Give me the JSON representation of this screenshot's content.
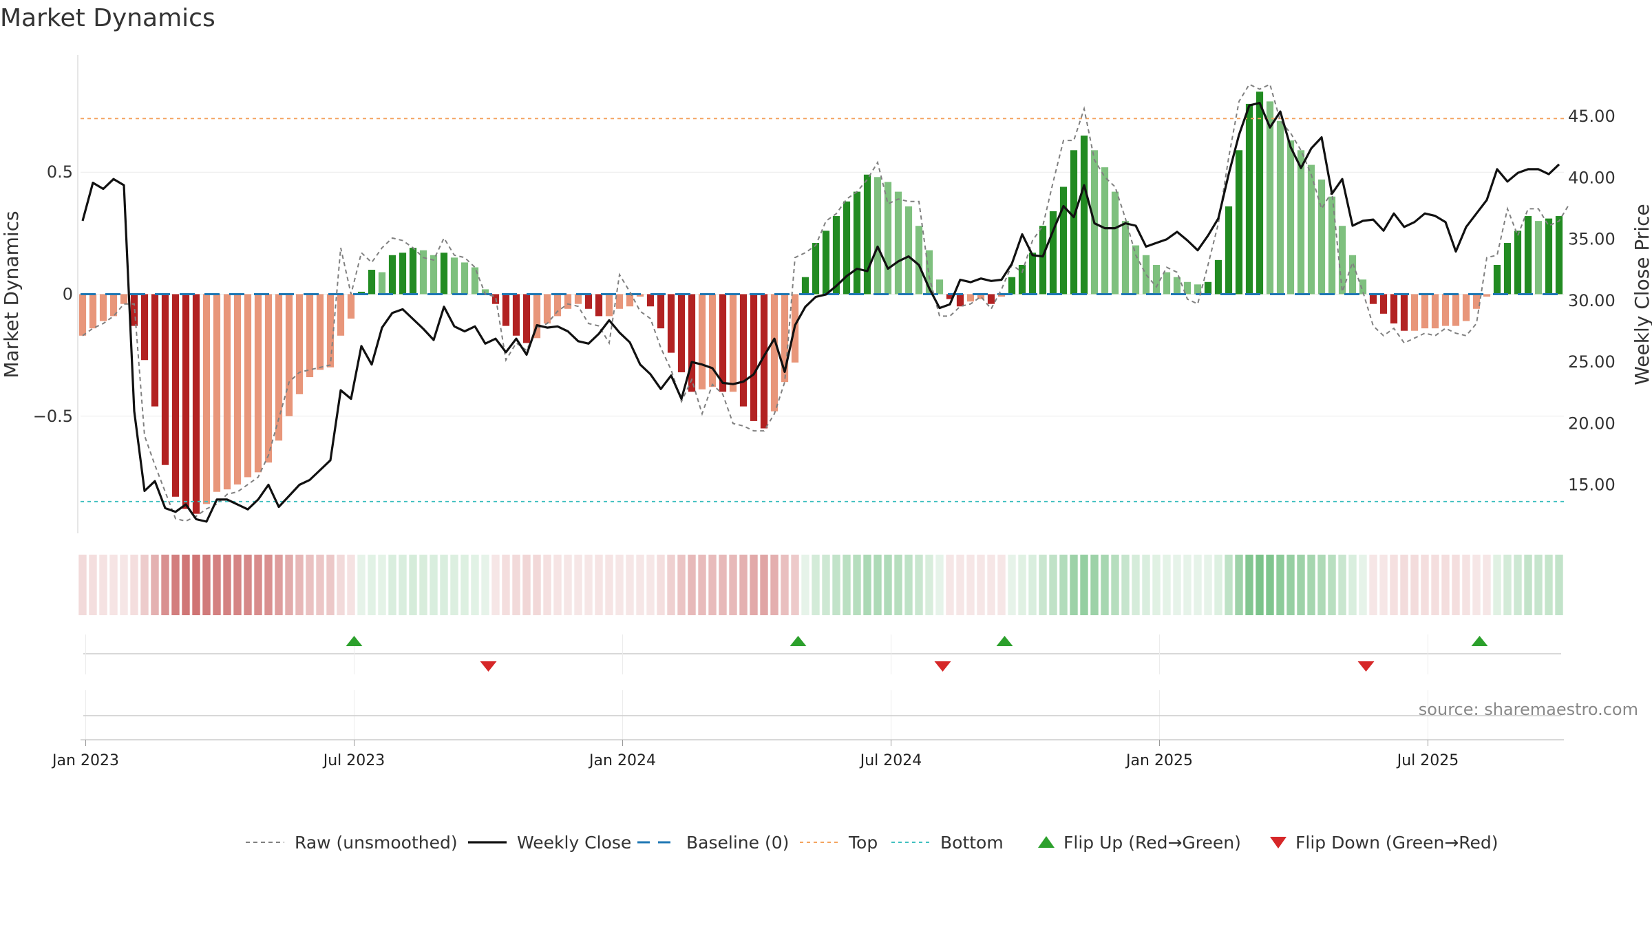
{
  "page": {
    "title": "Market Dynamics"
  },
  "chart_data": {
    "type": "bar",
    "title": "Market Dynamics",
    "ylabel_left": "Market Dynamics",
    "ylabel_right": "Weekly Close Price",
    "source": "source: sharemaestro.com",
    "ylim_left": [
      -0.98,
      0.98
    ],
    "yticks_left": [
      {
        "v": 0.5,
        "label": "0.5"
      },
      {
        "v": 0,
        "label": "0"
      },
      {
        "v": -0.5,
        "label": "−0.5"
      }
    ],
    "ylim_right": [
      11.05,
      50.0
    ],
    "yticks_right": [
      15,
      20,
      25,
      30,
      35,
      40,
      45
    ],
    "yticks_right_labels": [
      "15.00",
      "20.00",
      "25.00",
      "30.00",
      "35.00",
      "40.00",
      "45.00"
    ],
    "x_ticks": [
      {
        "week": 1,
        "label": "Jan 2023"
      },
      {
        "week": 27,
        "label": "Jul 2023"
      },
      {
        "week": 53,
        "label": "Jan 2024"
      },
      {
        "week": 79,
        "label": "Jul 2024"
      },
      {
        "week": 105,
        "label": "Jan 2025"
      },
      {
        "week": 131,
        "label": "Jul 2025"
      }
    ],
    "top_level": 0.72,
    "bottom_level": -0.85,
    "baseline": 0,
    "colors": {
      "strong_red": "#b22222",
      "light_red": "#e8967a",
      "strong_green": "#228b22",
      "light_green": "#7ec07e",
      "top_line": "#f4a460",
      "bottom_line": "#40c0c0",
      "baseline_line": "#1f77b4",
      "close_line": "#111111",
      "raw_line": "#808080",
      "flip_up": "#2ca02c",
      "flip_down": "#d62728"
    },
    "start_date": "2022-12-26",
    "week_step_days": 7,
    "bars": [
      -0.17,
      -0.14,
      -0.11,
      -0.09,
      -0.04,
      -0.13,
      -0.27,
      -0.46,
      -0.7,
      -0.83,
      -0.88,
      -0.9,
      -0.86,
      -0.81,
      -0.8,
      -0.78,
      -0.75,
      -0.73,
      -0.69,
      -0.6,
      -0.5,
      -0.41,
      -0.34,
      -0.31,
      -0.3,
      -0.17,
      -0.1,
      0.01,
      0.1,
      0.09,
      0.16,
      0.17,
      0.19,
      0.18,
      0.16,
      0.17,
      0.15,
      0.13,
      0.11,
      0.02,
      -0.04,
      -0.13,
      -0.17,
      -0.2,
      -0.18,
      -0.12,
      -0.09,
      -0.06,
      -0.04,
      -0.06,
      -0.09,
      -0.09,
      -0.06,
      -0.05,
      -0.01,
      -0.05,
      -0.14,
      -0.24,
      -0.32,
      -0.4,
      -0.39,
      -0.38,
      -0.4,
      -0.4,
      -0.46,
      -0.52,
      -0.55,
      -0.48,
      -0.36,
      -0.28,
      0.07,
      0.21,
      0.26,
      0.32,
      0.38,
      0.42,
      0.49,
      0.48,
      0.46,
      0.42,
      0.36,
      0.28,
      0.18,
      0.06,
      -0.02,
      -0.05,
      -0.03,
      -0.02,
      -0.04,
      -0.01,
      0.07,
      0.12,
      0.17,
      0.28,
      0.34,
      0.44,
      0.59,
      0.65,
      0.59,
      0.52,
      0.42,
      0.3,
      0.2,
      0.16,
      0.12,
      0.09,
      0.07,
      0.05,
      0.04,
      0.05,
      0.14,
      0.36,
      0.59,
      0.78,
      0.83,
      0.79,
      0.71,
      0.63,
      0.59,
      0.53,
      0.47,
      0.4,
      0.28,
      0.16,
      0.06,
      -0.04,
      -0.08,
      -0.12,
      -0.15,
      -0.15,
      -0.14,
      -0.14,
      -0.13,
      -0.13,
      -0.11,
      -0.06,
      -0.01,
      0.12,
      0.21,
      0.26,
      0.32,
      0.3,
      0.31,
      0.32
    ],
    "close": [
      36.5,
      39.6,
      39.1,
      39.9,
      39.4,
      21.0,
      14.5,
      15.3,
      13.1,
      12.8,
      13.4,
      12.2,
      12.0,
      13.8,
      13.8,
      13.4,
      13.0,
      13.8,
      15.0,
      13.2,
      14.1,
      15.0,
      15.4,
      16.2,
      17.0,
      22.7,
      22.0,
      26.3,
      24.8,
      27.8,
      29.0,
      29.3,
      28.5,
      27.7,
      26.8,
      29.5,
      27.9,
      27.5,
      27.9,
      26.5,
      26.9,
      25.8,
      26.9,
      25.6,
      28.0,
      27.8,
      27.9,
      27.5,
      26.7,
      26.5,
      27.3,
      28.4,
      27.4,
      26.6,
      24.8,
      24.0,
      22.8,
      23.9,
      22.0,
      25.0,
      24.8,
      24.5,
      23.3,
      23.2,
      23.4,
      24.0,
      25.5,
      26.9,
      24.2,
      28.0,
      29.5,
      30.3,
      30.5,
      31.2,
      32.0,
      32.6,
      32.4,
      34.4,
      32.6,
      33.2,
      33.6,
      32.9,
      31.0,
      29.4,
      29.7,
      31.7,
      31.5,
      31.8,
      31.6,
      31.7,
      33.0,
      35.4,
      33.7,
      33.6,
      35.7,
      37.7,
      36.8,
      39.4,
      36.3,
      35.9,
      35.9,
      36.3,
      36.1,
      34.4,
      34.7,
      35.0,
      35.6,
      34.9,
      34.1,
      35.3,
      36.7,
      40.3,
      43.5,
      45.9,
      46.1,
      44.1,
      45.4,
      42.5,
      40.8,
      42.4,
      43.3,
      38.7,
      39.9,
      36.1,
      36.5,
      36.6,
      35.7,
      37.1,
      36.0,
      36.4,
      37.1,
      36.9,
      36.4,
      34.0,
      36.0,
      37.1,
      38.2,
      40.7,
      39.7,
      40.4,
      40.7,
      40.7,
      40.3,
      41.1
    ],
    "raw": [
      -0.17,
      -0.14,
      -0.12,
      -0.09,
      -0.04,
      -0.04,
      -0.58,
      -0.7,
      -0.81,
      -0.92,
      -0.93,
      -0.91,
      -0.88,
      -0.86,
      -0.82,
      -0.81,
      -0.78,
      -0.75,
      -0.66,
      -0.51,
      -0.36,
      -0.32,
      -0.31,
      -0.3,
      -0.29,
      0.19,
      0.0,
      0.17,
      0.13,
      0.19,
      0.23,
      0.22,
      0.19,
      0.15,
      0.14,
      0.23,
      0.16,
      0.15,
      0.11,
      0.0,
      -0.01,
      -0.27,
      -0.2,
      -0.23,
      -0.14,
      -0.12,
      -0.07,
      -0.04,
      -0.05,
      -0.12,
      -0.13,
      -0.2,
      0.08,
      0.01,
      -0.07,
      -0.1,
      -0.22,
      -0.31,
      -0.44,
      -0.35,
      -0.49,
      -0.37,
      -0.41,
      -0.53,
      -0.54,
      -0.56,
      -0.56,
      -0.49,
      -0.36,
      0.15,
      0.17,
      0.2,
      0.3,
      0.33,
      0.39,
      0.42,
      0.47,
      0.54,
      0.37,
      0.39,
      0.38,
      0.38,
      0.07,
      -0.09,
      -0.09,
      -0.05,
      -0.04,
      -0.01,
      -0.06,
      0.02,
      0.12,
      0.09,
      0.22,
      0.28,
      0.46,
      0.63,
      0.63,
      0.76,
      0.55,
      0.48,
      0.44,
      0.31,
      0.16,
      0.08,
      0.03,
      0.11,
      0.09,
      -0.02,
      -0.04,
      0.12,
      0.29,
      0.56,
      0.79,
      0.86,
      0.84,
      0.86,
      0.71,
      0.66,
      0.59,
      0.49,
      0.35,
      0.42,
      0.01,
      0.13,
      0.01,
      -0.13,
      -0.17,
      -0.14,
      -0.2,
      -0.18,
      -0.16,
      -0.17,
      -0.14,
      -0.16,
      -0.17,
      -0.12,
      0.15,
      0.16,
      0.35,
      0.24,
      0.35,
      0.35,
      0.28,
      0.3,
      0.37
    ],
    "regime_strip": [
      -0.17,
      -0.14,
      -0.11,
      -0.09,
      -0.04,
      -0.13,
      -0.27,
      -0.46,
      -0.7,
      -0.83,
      -0.88,
      -0.9,
      -0.86,
      -0.81,
      -0.8,
      -0.78,
      -0.75,
      -0.73,
      -0.69,
      -0.6,
      -0.5,
      -0.41,
      -0.34,
      -0.31,
      -0.3,
      -0.17,
      -0.1,
      0.01,
      0.1,
      0.09,
      0.16,
      0.17,
      0.19,
      0.18,
      0.16,
      0.17,
      0.15,
      0.13,
      0.11,
      0.02,
      -0.04,
      -0.13,
      -0.17,
      -0.2,
      -0.18,
      -0.12,
      -0.09,
      -0.06,
      -0.04,
      -0.06,
      -0.09,
      -0.09,
      -0.06,
      -0.05,
      -0.01,
      -0.05,
      -0.14,
      -0.24,
      -0.32,
      -0.4,
      -0.39,
      -0.38,
      -0.4,
      -0.4,
      -0.46,
      -0.52,
      -0.55,
      -0.48,
      -0.36,
      -0.28,
      0.07,
      0.21,
      0.26,
      0.32,
      0.38,
      0.42,
      0.49,
      0.48,
      0.46,
      0.42,
      0.36,
      0.28,
      0.18,
      0.06,
      -0.02,
      -0.05,
      -0.03,
      -0.02,
      -0.04,
      -0.01,
      0.07,
      0.12,
      0.17,
      0.28,
      0.34,
      0.44,
      0.59,
      0.65,
      0.59,
      0.52,
      0.42,
      0.3,
      0.2,
      0.16,
      0.12,
      0.09,
      0.07,
      0.05,
      0.04,
      0.05,
      0.14,
      0.36,
      0.59,
      0.78,
      0.83,
      0.79,
      0.71,
      0.63,
      0.59,
      0.53,
      0.47,
      0.4,
      0.28,
      0.16,
      0.06,
      -0.04,
      -0.08,
      -0.12,
      -0.15,
      -0.15,
      -0.14,
      -0.14,
      -0.13,
      -0.13,
      -0.11,
      -0.06,
      -0.01,
      0.12,
      0.21,
      0.26,
      0.32,
      0.3,
      0.31,
      0.32
    ],
    "flips": [
      {
        "week": 27,
        "dir": "up"
      },
      {
        "week": 40,
        "dir": "down"
      },
      {
        "week": 70,
        "dir": "up"
      },
      {
        "week": 84,
        "dir": "down"
      },
      {
        "week": 90,
        "dir": "up"
      },
      {
        "week": 125,
        "dir": "down"
      },
      {
        "week": 136,
        "dir": "up"
      }
    ],
    "legend": [
      {
        "label": "Raw (unsmoothed)",
        "kind": "dashed",
        "color": "#808080"
      },
      {
        "label": "Weekly Close",
        "kind": "solid",
        "color": "#111111"
      },
      {
        "label": "Baseline (0)",
        "kind": "longdash",
        "color": "#1f77b4"
      },
      {
        "label": "Top",
        "kind": "dotted",
        "color": "#f4a460"
      },
      {
        "label": "Bottom",
        "kind": "dotted",
        "color": "#40c0c0"
      },
      {
        "label": "Flip Up (Red→Green)",
        "kind": "triup",
        "color": "#2ca02c"
      },
      {
        "label": "Flip Down (Green→Red)",
        "kind": "tridown",
        "color": "#d62728"
      }
    ]
  }
}
